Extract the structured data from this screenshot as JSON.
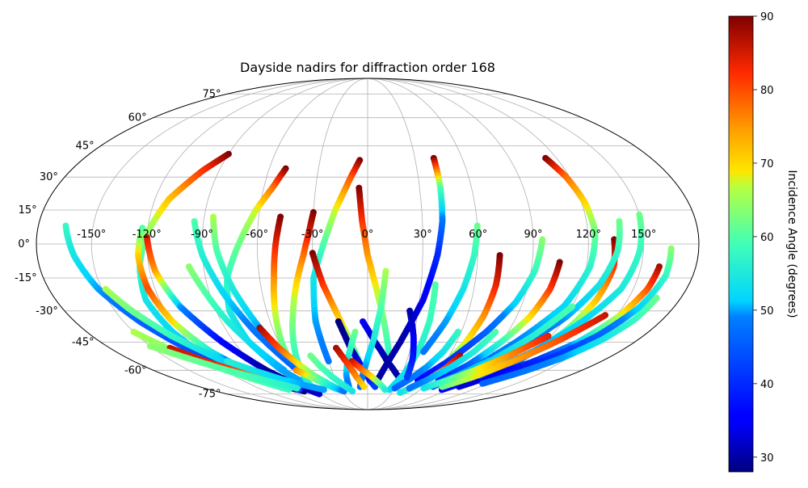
{
  "chart_data": {
    "type": "scatter",
    "projection": "mollweide",
    "title": "Dayside nadirs for diffraction order 168",
    "longitude_ticks": [
      "-150°",
      "-120°",
      "-90°",
      "-60°",
      "-30°",
      "0°",
      "30°",
      "60°",
      "90°",
      "120°",
      "150°"
    ],
    "latitude_ticks": [
      "75°",
      "60°",
      "45°",
      "30°",
      "15°",
      "0°",
      "-15°",
      "-30°",
      "-45°",
      "-60°",
      "-75°"
    ],
    "longitude_grid": [
      -150,
      -120,
      -90,
      -60,
      -30,
      0,
      30,
      60,
      90,
      120,
      150
    ],
    "latitude_grid": [
      -75,
      -60,
      -45,
      -30,
      -15,
      0,
      15,
      30,
      45,
      60,
      75
    ],
    "grid": true,
    "colormap": "jet",
    "colorbar": {
      "label": "Incidence Angle (degrees)",
      "ticks": [
        "30",
        "40",
        "50",
        "60",
        "70",
        "80",
        "90"
      ],
      "tick_values": [
        30,
        40,
        50,
        60,
        70,
        80,
        90
      ],
      "range": [
        28,
        90
      ],
      "placement": "right"
    },
    "tracks": [
      {
        "lon": [
          -90,
          -100,
          -112,
          -120,
          -125,
          -128,
          -125,
          -118,
          -105,
          -90
        ],
        "lat": [
          41,
          33,
          20,
          5,
          -10,
          -25,
          -40,
          -55,
          -65,
          -70
        ],
        "inc": [
          90,
          82,
          72,
          64,
          58,
          54,
          52,
          50,
          49,
          48
        ]
      },
      {
        "lon": [
          -123,
          -125,
          -124,
          -120,
          -112,
          -100,
          -88,
          -75
        ],
        "lat": [
          7,
          -5,
          -20,
          -35,
          -50,
          -62,
          -70,
          -73
        ],
        "inc": [
          60,
          70,
          80,
          70,
          55,
          38,
          30,
          28
        ]
      },
      {
        "lon": [
          -120,
          -117,
          -110,
          -98,
          -85,
          -72,
          -62
        ],
        "lat": [
          3,
          -12,
          -28,
          -45,
          -60,
          -70,
          -75
        ],
        "inc": [
          85,
          75,
          50,
          36,
          30,
          30,
          32
        ]
      },
      {
        "lon": [
          -50,
          -55,
          -62,
          -70,
          -78,
          -82,
          -80,
          -72,
          -60
        ],
        "lat": [
          34,
          25,
          15,
          0,
          -15,
          -30,
          -45,
          -60,
          -70
        ],
        "inc": [
          90,
          78,
          68,
          62,
          58,
          55,
          52,
          50,
          50
        ]
      },
      {
        "lon": [
          -30,
          -32,
          -35,
          -40,
          -45,
          -50,
          -55,
          -60
        ],
        "lat": [
          14,
          5,
          -5,
          -18,
          -32,
          -45,
          -58,
          -70
        ],
        "inc": [
          90,
          85,
          78,
          70,
          64,
          60,
          57,
          55
        ]
      },
      {
        "lon": [
          -48,
          -50,
          -52,
          -55,
          -58,
          -60
        ],
        "lat": [
          12,
          0,
          -15,
          -30,
          -45,
          -58
        ],
        "inc": [
          90,
          84,
          76,
          68,
          62,
          58
        ]
      },
      {
        "lon": [
          -5,
          -10,
          -18,
          -24,
          -30,
          -32,
          -30
        ],
        "lat": [
          38,
          30,
          15,
          0,
          -15,
          -35,
          -55
        ],
        "inc": [
          90,
          80,
          68,
          60,
          54,
          50,
          48
        ]
      },
      {
        "lon": [
          -5,
          -3,
          0,
          5,
          10,
          15
        ],
        "lat": [
          25,
          10,
          -5,
          -20,
          -35,
          -50
        ],
        "inc": [
          90,
          82,
          75,
          68,
          62,
          58
        ]
      },
      {
        "lon": [
          42,
          42,
          41,
          38,
          32,
          22,
          10
        ],
        "lat": [
          39,
          25,
          10,
          -5,
          -25,
          -45,
          -65
        ],
        "inc": [
          90,
          60,
          48,
          40,
          34,
          30,
          30
        ]
      },
      {
        "lon": [
          -30,
          -25,
          -18,
          -10,
          -3
        ],
        "lat": [
          -4,
          -18,
          -32,
          -48,
          -62
        ],
        "inc": [
          90,
          82,
          72,
          62,
          55
        ]
      },
      {
        "lon": [
          -18,
          -12,
          -5,
          2,
          8
        ],
        "lat": [
          -35,
          -48,
          -58,
          -66,
          -70
        ],
        "inc": [
          28,
          30,
          34,
          38,
          42
        ]
      },
      {
        "lon": [
          -3,
          5,
          15,
          25,
          35
        ],
        "lat": [
          -35,
          -45,
          -55,
          -62,
          -68
        ],
        "inc": [
          35,
          32,
          30,
          30,
          31
        ]
      },
      {
        "lon": [
          38,
          38,
          36,
          32,
          25
        ],
        "lat": [
          -18,
          -35,
          -50,
          -62,
          -72
        ],
        "inc": [
          60,
          58,
          56,
          54,
          52
        ]
      },
      {
        "lon": [
          113,
          118,
          122,
          124,
          122,
          115,
          100,
          85,
          70
        ],
        "lat": [
          39,
          30,
          18,
          5,
          -10,
          -28,
          -45,
          -60,
          -70
        ],
        "inc": [
          90,
          78,
          70,
          62,
          57,
          52,
          49,
          47,
          46
        ]
      },
      {
        "lon": [
          134,
          135,
          132,
          126,
          115,
          100,
          85
        ],
        "lat": [
          2,
          -10,
          -25,
          -40,
          -55,
          -65,
          -72
        ],
        "inc": [
          90,
          82,
          72,
          60,
          48,
          40,
          35
        ]
      },
      {
        "lon": [
          160,
          158,
          152,
          142,
          128,
          112,
          98
        ],
        "lat": [
          -10,
          -20,
          -32,
          -45,
          -55,
          -63,
          -70
        ],
        "inc": [
          88,
          80,
          68,
          52,
          40,
          34,
          32
        ]
      },
      {
        "lon": [
          150,
          148,
          143,
          132,
          118,
          100
        ],
        "lat": [
          13,
          -3,
          -20,
          -35,
          -50,
          -63
        ],
        "inc": [
          62,
          58,
          55,
          52,
          50,
          48
        ]
      },
      {
        "lon": [
          105,
          103,
          98,
          90,
          80,
          68
        ],
        "lat": [
          -8,
          -20,
          -33,
          -45,
          -57,
          -66
        ],
        "inc": [
          90,
          82,
          70,
          58,
          46,
          38
        ]
      },
      {
        "lon": [
          72,
          72,
          70,
          66,
          60
        ],
        "lat": [
          -5,
          -18,
          -32,
          -46,
          -58
        ],
        "inc": [
          90,
          84,
          76,
          68,
          60
        ]
      },
      {
        "lon": [
          60,
          58,
          54,
          48,
          40
        ],
        "lat": [
          8,
          -5,
          -20,
          -35,
          -50
        ],
        "inc": [
          62,
          58,
          54,
          50,
          48
        ]
      },
      {
        "lon": [
          95,
          92,
          86,
          76,
          62,
          48
        ],
        "lat": [
          2,
          -12,
          -26,
          -40,
          -55,
          -66
        ],
        "inc": [
          64,
          58,
          52,
          46,
          40,
          36
        ]
      },
      {
        "lon": [
          165,
          165,
          160,
          150,
          135,
          118
        ],
        "lat": [
          -2,
          -14,
          -28,
          -42,
          -55,
          -65
        ],
        "inc": [
          64,
          58,
          52,
          46,
          40,
          36
        ]
      },
      {
        "lon": [
          166,
          163,
          156,
          146,
          132,
          116
        ],
        "lat": [
          -24,
          -34,
          -44,
          -53,
          -61,
          -68
        ],
        "inc": [
          62,
          58,
          54,
          50,
          48,
          46
        ]
      },
      {
        "lon": [
          138,
          136,
          130,
          120,
          105,
          88
        ],
        "lat": [
          10,
          -3,
          -18,
          -33,
          -48,
          -62
        ],
        "inc": [
          62,
          58,
          54,
          50,
          46,
          42
        ]
      },
      {
        "lon": [
          -165,
          -160,
          -152,
          -140,
          -125,
          -108
        ],
        "lat": [
          8,
          -5,
          -20,
          -35,
          -50,
          -62
        ],
        "inc": [
          58,
          54,
          50,
          46,
          44,
          42
        ]
      },
      {
        "lon": [
          -148,
          -140,
          -128,
          -112,
          -95,
          -78
        ],
        "lat": [
          -20,
          -30,
          -42,
          -54,
          -64,
          -72
        ],
        "inc": [
          66,
          62,
          58,
          52,
          46,
          42
        ]
      },
      {
        "lon": [
          -150,
          -140,
          -125,
          -108,
          -90
        ],
        "lat": [
          -40,
          -48,
          -57,
          -65,
          -72
        ],
        "inc": [
          66,
          64,
          62,
          60,
          58
        ]
      },
      {
        "lon": [
          -138,
          -125,
          -110,
          -92,
          -75
        ],
        "lat": [
          -48,
          -55,
          -61,
          -66,
          -70
        ],
        "inc": [
          86,
          84,
          80,
          75,
          70
        ]
      },
      {
        "lon": [
          -95,
          -90,
          -82,
          -72,
          -60
        ],
        "lat": [
          10,
          -5,
          -22,
          -40,
          -58
        ],
        "inc": [
          60,
          56,
          52,
          48,
          46
        ]
      },
      {
        "lon": [
          -85,
          -82,
          -76,
          -68,
          -58
        ],
        "lat": [
          12,
          -3,
          -20,
          -38,
          -56
        ],
        "inc": [
          66,
          60,
          55,
          50,
          47
        ]
      },
      {
        "lon": [
          -98,
          -92,
          -86,
          -78,
          -70
        ],
        "lat": [
          -10,
          -22,
          -35,
          -48,
          -60
        ],
        "inc": [
          64,
          60,
          56,
          52,
          50
        ]
      },
      {
        "lon": [
          -68,
          -62,
          -55,
          -48,
          -40,
          -32
        ],
        "lat": [
          -38,
          -48,
          -56,
          -63,
          -68,
          -72
        ],
        "inc": [
          88,
          80,
          70,
          62,
          56,
          52
        ]
      },
      {
        "lon": [
          -60,
          -52,
          -44,
          -36,
          -28
        ],
        "lat": [
          -60,
          -64,
          -68,
          -71,
          -73
        ],
        "inc": [
          76,
          66,
          58,
          52,
          48
        ]
      },
      {
        "lon": [
          -8,
          -12,
          -16,
          -19,
          -20
        ],
        "lat": [
          -40,
          -48,
          -56,
          -63,
          -70
        ],
        "inc": [
          62,
          58,
          54,
          50,
          48
        ]
      },
      {
        "lon": [
          10,
          8,
          4,
          -2,
          -8
        ],
        "lat": [
          -12,
          -28,
          -44,
          -58,
          -70
        ],
        "inc": [
          66,
          60,
          55,
          50,
          46
        ]
      },
      {
        "lon": [
          -12,
          -4,
          4,
          12,
          20
        ],
        "lat": [
          -55,
          -60,
          -64,
          -68,
          -72
        ],
        "inc": [
          86,
          78,
          70,
          62,
          56
        ]
      },
      {
        "lon": [
          58,
          54,
          48,
          40,
          30
        ],
        "lat": [
          -40,
          -50,
          -58,
          -65,
          -71
        ],
        "inc": [
          58,
          54,
          50,
          48,
          46
        ]
      },
      {
        "lon": [
          68,
          64,
          58,
          50,
          40
        ],
        "lat": [
          -52,
          -59,
          -65,
          -70,
          -74
        ],
        "inc": [
          88,
          80,
          70,
          60,
          54
        ]
      },
      {
        "lon": [
          82,
          76,
          68,
          58,
          46
        ],
        "lat": [
          -40,
          -50,
          -58,
          -65,
          -71
        ],
        "inc": [
          60,
          56,
          52,
          50,
          48
        ]
      },
      {
        "lon": [
          120,
          108,
          95,
          80,
          65
        ],
        "lat": [
          -28,
          -42,
          -54,
          -63,
          -70
        ],
        "inc": [
          60,
          56,
          52,
          50,
          48
        ]
      },
      {
        "lon": [
          143,
          128,
          112,
          96,
          80
        ],
        "lat": [
          -32,
          -44,
          -55,
          -64,
          -70
        ],
        "inc": [
          86,
          80,
          74,
          68,
          62
        ]
      },
      {
        "lon": [
          118,
          104,
          90,
          76,
          62
        ],
        "lat": [
          -42,
          -52,
          -60,
          -66,
          -71
        ],
        "inc": [
          84,
          76,
          68,
          60,
          54
        ]
      },
      {
        "lon": [
          -22,
          -16,
          -10,
          -4
        ],
        "lat": [
          -48,
          -56,
          -64,
          -70
        ],
        "inc": [
          88,
          82,
          76,
          70
        ]
      },
      {
        "lon": [
          25,
          30,
          34,
          36
        ],
        "lat": [
          -30,
          -42,
          -54,
          -64
        ],
        "inc": [
          30,
          34,
          38,
          42
        ]
      },
      {
        "lon": [
          -42,
          -38,
          -32,
          -25,
          -18
        ],
        "lat": [
          -52,
          -58,
          -64,
          -69,
          -73
        ],
        "inc": [
          62,
          60,
          58,
          56,
          54
        ]
      },
      {
        "lon": [
          -108,
          -96,
          -82,
          -66,
          -50
        ],
        "lat": [
          -55,
          -60,
          -65,
          -69,
          -72
        ],
        "inc": [
          56,
          54,
          52,
          50,
          50
        ]
      },
      {
        "lon": [
          -150,
          -136,
          -118,
          -98,
          -78
        ],
        "lat": [
          -47,
          -53,
          -60,
          -66,
          -71
        ],
        "inc": [
          64,
          62,
          60,
          58,
          56
        ]
      }
    ]
  }
}
